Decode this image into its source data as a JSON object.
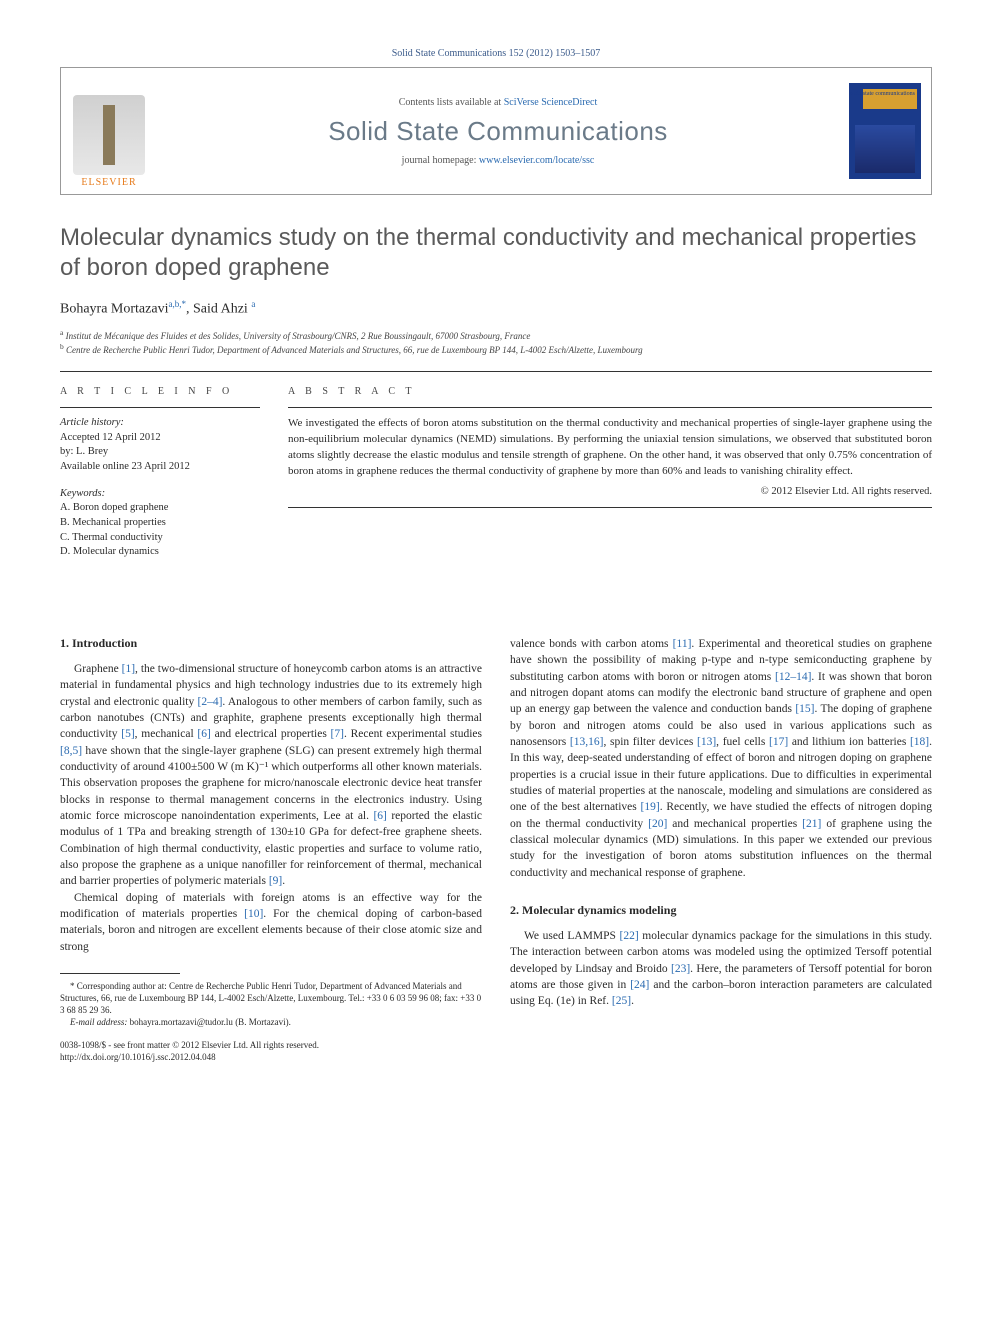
{
  "header": {
    "citation": "Solid State Communications 152 (2012) 1503–1507"
  },
  "masthead": {
    "publisher": "ELSEVIER",
    "contents_prefix": "Contents lists available at ",
    "contents_link": "SciVerse ScienceDirect",
    "journal": "Solid State Communications",
    "homepage_prefix": "journal homepage: ",
    "homepage_url": "www.elsevier.com/locate/ssc",
    "cover_label": "solid\nstate\ncommunications"
  },
  "article": {
    "title": "Molecular dynamics study on the thermal conductivity and mechanical properties of boron doped graphene",
    "authors_html": "Bohayra Mortazavi",
    "author1_sup": "a,b,*",
    "author_sep": ", ",
    "author2": "Said Ahzi",
    "author2_sup": "a",
    "affiliations": [
      {
        "sup": "a",
        "text": "Institut de Mécanique des Fluides et des Solides, University of Strasbourg/CNRS, 2 Rue Boussingault, 67000 Strasbourg, France"
      },
      {
        "sup": "b",
        "text": "Centre de Recherche Public Henri Tudor, Department of Advanced Materials and Structures, 66, rue de Luxembourg BP 144, L-4002 Esch/Alzette, Luxembourg"
      }
    ]
  },
  "info": {
    "heading": "A R T I C L E  I N F O",
    "history_label": "Article history:",
    "history_lines": [
      "Accepted 12 April 2012",
      "by: L. Brey",
      "Available online 23 April 2012"
    ],
    "keywords_label": "Keywords:",
    "keywords": [
      "A. Boron doped graphene",
      "B. Mechanical properties",
      "C. Thermal conductivity",
      "D. Molecular dynamics"
    ]
  },
  "abstract": {
    "heading": "A B S T R A C T",
    "text": "We investigated the effects of boron atoms substitution on the thermal conductivity and mechanical properties of single-layer graphene using the non-equilibrium molecular dynamics (NEMD) simulations. By performing the uniaxial tension simulations, we observed that substituted boron atoms slightly decrease the elastic modulus and tensile strength of graphene. On the other hand, it was observed that only 0.75% concentration of boron atoms in graphene reduces the thermal conductivity of graphene by more than 60% and leads to vanishing chirality effect.",
    "copyright": "© 2012 Elsevier Ltd. All rights reserved."
  },
  "body": {
    "sec1_heading": "1. Introduction",
    "sec1_p1": "Graphene [1], the two-dimensional structure of honeycomb carbon atoms is an attractive material in fundamental physics and high technology industries due to its extremely high crystal and electronic quality [2–4]. Analogous to other members of carbon family, such as carbon nanotubes (CNTs) and graphite, graphene presents exceptionally high thermal conductivity [5], mechanical [6] and electrical properties [7]. Recent experimental studies [8,5] have shown that the single-layer graphene (SLG) can present extremely high thermal conductivity of around 4100±500 W (m K)⁻¹ which outperforms all other known materials. This observation proposes the graphene for micro/nanoscale electronic device heat transfer blocks in response to thermal management concerns in the electronics industry. Using atomic force microscope nanoindentation experiments, Lee at al. [6] reported the elastic modulus of 1 TPa and breaking strength of 130±10 GPa for defect-free graphene sheets. Combination of high thermal conductivity, elastic properties and surface to volume ratio, also propose the graphene as a unique nanofiller for reinforcement of thermal, mechanical and barrier properties of polymeric materials [9].",
    "sec1_p2": "Chemical doping of materials with foreign atoms is an effective way for the modification of materials properties [10]. For the chemical doping of carbon-based materials, boron and nitrogen are excellent elements because of their close atomic size and strong",
    "sec1_p3": "valence bonds with carbon atoms [11]. Experimental and theoretical studies on graphene have shown the possibility of making p-type and n-type semiconducting graphene by substituting carbon atoms with boron or nitrogen atoms [12–14]. It was shown that boron and nitrogen dopant atoms can modify the electronic band structure of graphene and open up an energy gap between the valence and conduction bands [15]. The doping of graphene by boron and nitrogen atoms could be also used in various applications such as nanosensors [13,16], spin filter devices [13], fuel cells [17] and lithium ion batteries [18]. In this way, deep-seated understanding of effect of boron and nitrogen doping on graphene properties is a crucial issue in their future applications. Due to difficulties in experimental studies of material properties at the nanoscale, modeling and simulations are considered as one of the best alternatives [19]. Recently, we have studied the effects of nitrogen doping on the thermal conductivity [20] and mechanical properties [21] of graphene using the classical molecular dynamics (MD) simulations. In this paper we extended our previous study for the investigation of boron atoms substitution influences on the thermal conductivity and mechanical response of graphene.",
    "sec2_heading": "2. Molecular dynamics modeling",
    "sec2_p1": "We used LAMMPS [22] molecular dynamics package for the simulations in this study. The interaction between carbon atoms was modeled using the optimized Tersoff potential developed by Lindsay and Broido [23]. Here, the parameters of Tersoff potential for boron atoms are those given in [24] and the carbon–boron interaction parameters are calculated using Eq. (1e) in Ref. [25]."
  },
  "footnote": {
    "corr": "* Corresponding author at: Centre de Recherche Public Henri Tudor, Department of Advanced Materials and Structures, 66, rue de Luxembourg BP 144, L-4002 Esch/Alzette, Luxembourg. Tel.: +33 0 6 03 59 96 08; fax: +33 0 3 68 85 29 36.",
    "email_label": "E-mail address: ",
    "email": "bohayra.mortazavi@tudor.lu",
    "email_who": " (B. Mortazavi)."
  },
  "doi": {
    "issn_line": "0038-1098/$ - see front matter © 2012 Elsevier Ltd. All rights reserved.",
    "doi_line": "http://dx.doi.org/10.1016/j.ssc.2012.04.048"
  },
  "colors": {
    "link": "#2a6ab0",
    "title_gray": "#5a5a5a",
    "journal_gray": "#6a7a88",
    "elsevier_orange": "#e67a1a",
    "cover_blue": "#1a3a8a"
  }
}
